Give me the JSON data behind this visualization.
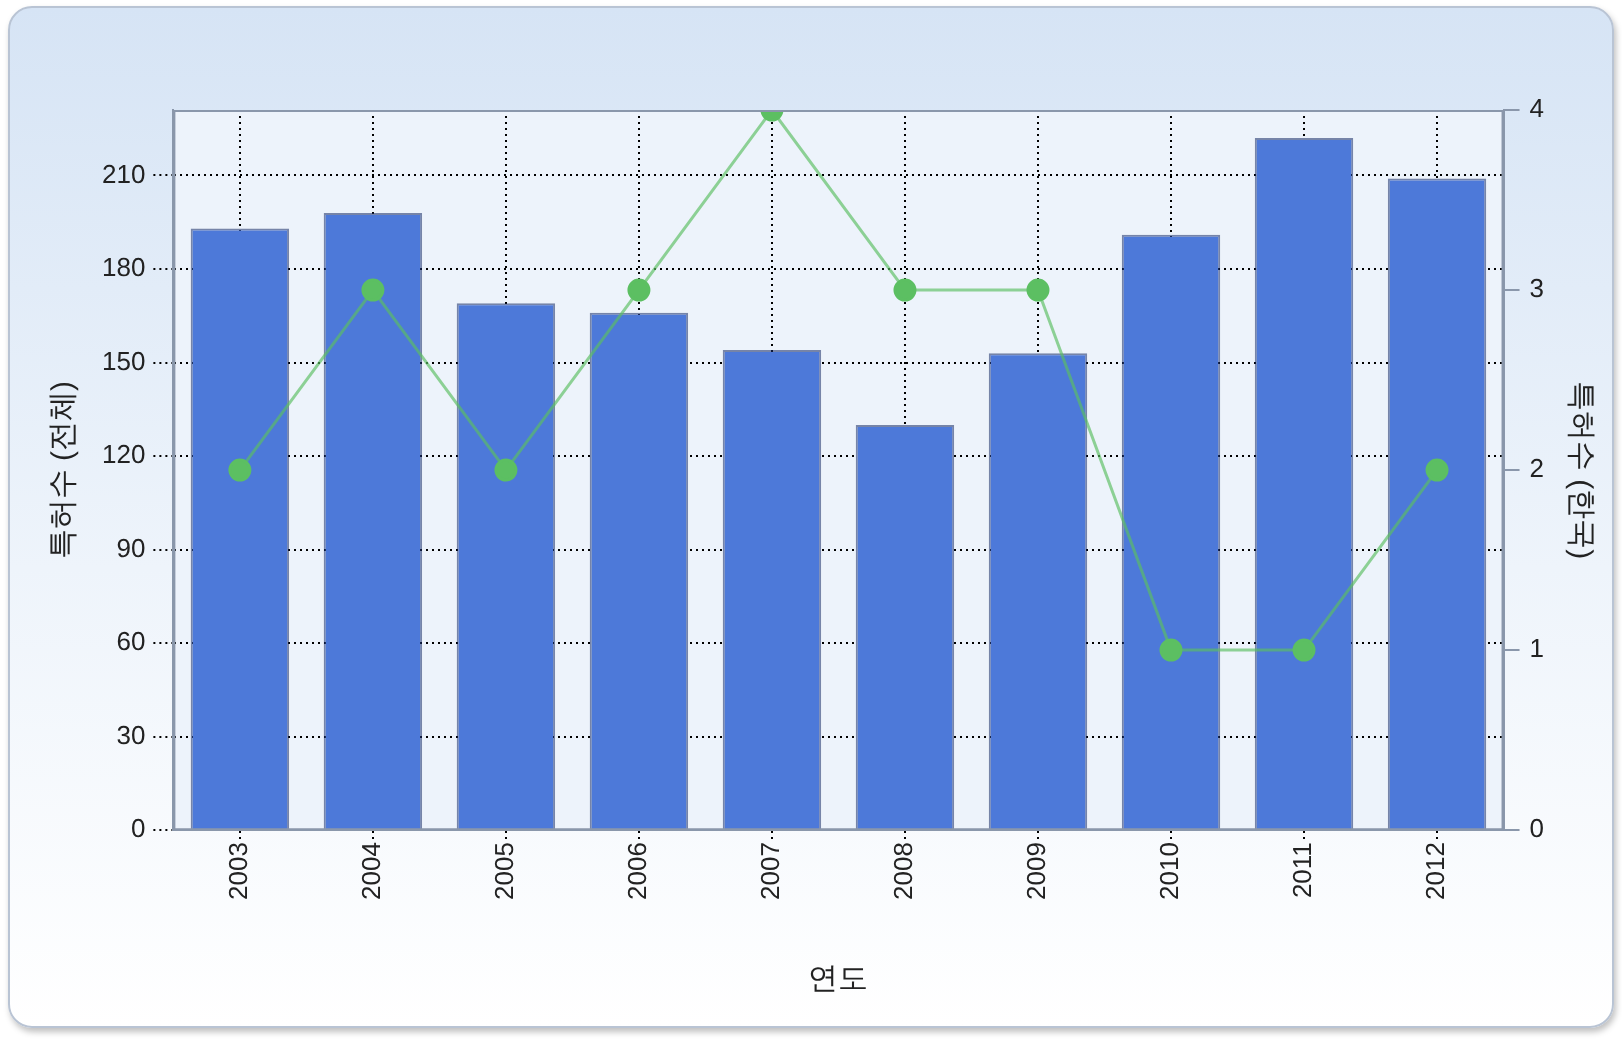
{
  "chart_data": {
    "type": "bar",
    "xlabel": "연도",
    "ylabel": "특허수 (전체)",
    "y2label": "특허수 (한국)",
    "categories": [
      "2003",
      "2004",
      "2005",
      "2006",
      "2007",
      "2008",
      "2009",
      "2010",
      "2011",
      "2012"
    ],
    "series": [
      {
        "color": "#4d79d9",
        "values": [
          193,
          198,
          169,
          166,
          154,
          130,
          153,
          191,
          222,
          209
        ]
      },
      {
        "type": "line",
        "axis": "y2",
        "color": "#5cbf62",
        "values": [
          2,
          3,
          2,
          3,
          4,
          3,
          3,
          1,
          1,
          2
        ]
      }
    ],
    "ylim": [
      0,
      231
    ],
    "yticks": [
      0,
      30,
      60,
      90,
      120,
      150,
      180,
      210
    ],
    "y2lim": [
      0,
      4
    ],
    "y2ticks": [
      0,
      1,
      2,
      3,
      4
    ],
    "grid": true,
    "legend": false,
    "marker": "circle"
  }
}
